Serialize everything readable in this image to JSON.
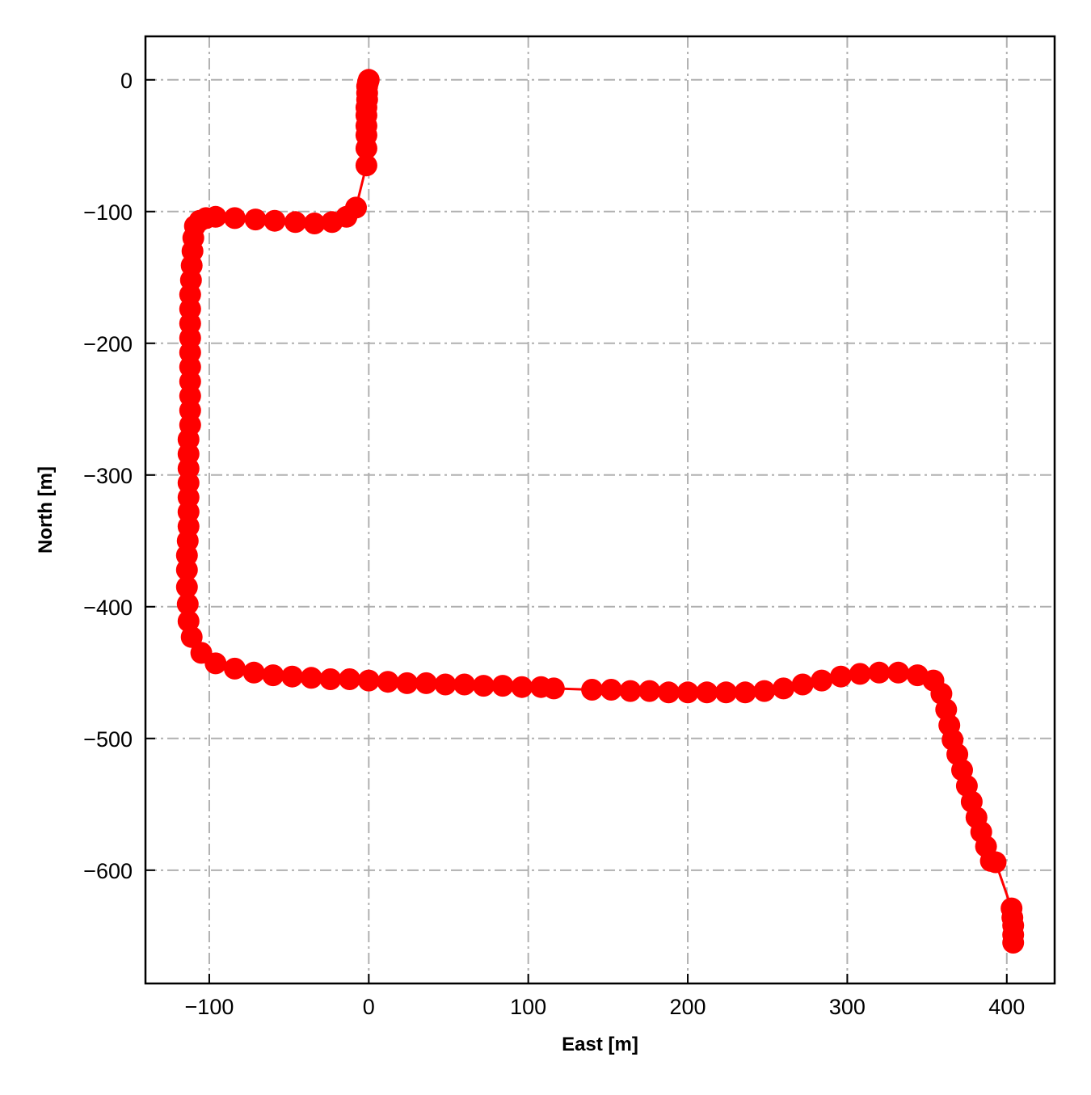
{
  "chart_data": {
    "type": "line",
    "title": "",
    "xlabel": "East [m]",
    "ylabel": "North [m]",
    "xlim": [
      -140,
      430
    ],
    "ylim": [
      -686,
      33
    ],
    "xticks": [
      -100,
      0,
      100,
      200,
      300,
      400
    ],
    "yticks": [
      0,
      -100,
      -200,
      -300,
      -400,
      -500,
      -600
    ],
    "xtick_labels": [
      "−100",
      "0",
      "100",
      "200",
      "300",
      "400"
    ],
    "ytick_labels": [
      "0",
      "−100",
      "−200",
      "−300",
      "−400",
      "−500",
      "−600"
    ],
    "grid": true,
    "grid_style": "dash-dot",
    "colors": {
      "series": "#ff0000",
      "grid": "#b0b0b0",
      "frame": "#000000"
    },
    "series": [
      {
        "marker": "circle",
        "x": [
          0,
          -0.5,
          -1,
          -1,
          -1,
          -1.5,
          -1.5,
          -1.5,
          -1.5,
          -1.5,
          -1.5,
          -8,
          -14,
          -23,
          -34,
          -46,
          -59,
          -71,
          -84,
          -96,
          -102,
          -106,
          -109,
          -110,
          -110.5,
          -111,
          -111.5,
          -112,
          -112,
          -112,
          -112,
          -112,
          -112,
          -112,
          -112,
          -112,
          -112,
          -113,
          -113,
          -113,
          -113,
          -113,
          -113,
          -113,
          -113.5,
          -114,
          -114,
          -114,
          -113.5,
          -113,
          -111,
          -105,
          -96,
          -84,
          -72,
          -60,
          -48,
          -36,
          -24,
          -12,
          0,
          12,
          24,
          36,
          48,
          60,
          72,
          84,
          96,
          108,
          116,
          140,
          152,
          164,
          176,
          188,
          200,
          212,
          224,
          236,
          248,
          260,
          272,
          284,
          296,
          308,
          320,
          332,
          344,
          354,
          359,
          362,
          364,
          366,
          369,
          372,
          375,
          378,
          381,
          384,
          387,
          390,
          393,
          403,
          403.5,
          404,
          404,
          404
        ]
      },
      {
        "y": [
          0,
          -2,
          -5,
          -10,
          -15,
          -21,
          -27,
          -35,
          -42,
          -52,
          -65,
          -97,
          -104,
          -108,
          -109,
          -108,
          -107,
          -106,
          -105,
          -104,
          -105,
          -107,
          -111,
          -120,
          -130,
          -141,
          -152,
          -163,
          -174,
          -185,
          -196,
          -207,
          -218,
          -229,
          -240,
          -251,
          -262,
          -273,
          -284,
          -295,
          -306,
          -317,
          -328,
          -339,
          -350,
          -361,
          -372,
          -385,
          -398,
          -411,
          -423,
          -435,
          -443,
          -447,
          -450,
          -452,
          -453,
          -454,
          -455,
          -455,
          -456,
          -457,
          -458,
          -458,
          -459,
          -459,
          -460,
          -460,
          -461,
          -461,
          -462,
          -463,
          -463,
          -464,
          -464,
          -465,
          -465,
          -465,
          -465,
          -465,
          -464,
          -462,
          -459,
          -456,
          -453,
          -451,
          -450,
          -450,
          -452,
          -456,
          -466,
          -478,
          -490,
          -501,
          -512,
          -524,
          -536,
          -548,
          -560,
          -571,
          -582,
          -593,
          -594,
          -629,
          -636,
          -642,
          -649,
          -655
        ]
      }
    ]
  }
}
